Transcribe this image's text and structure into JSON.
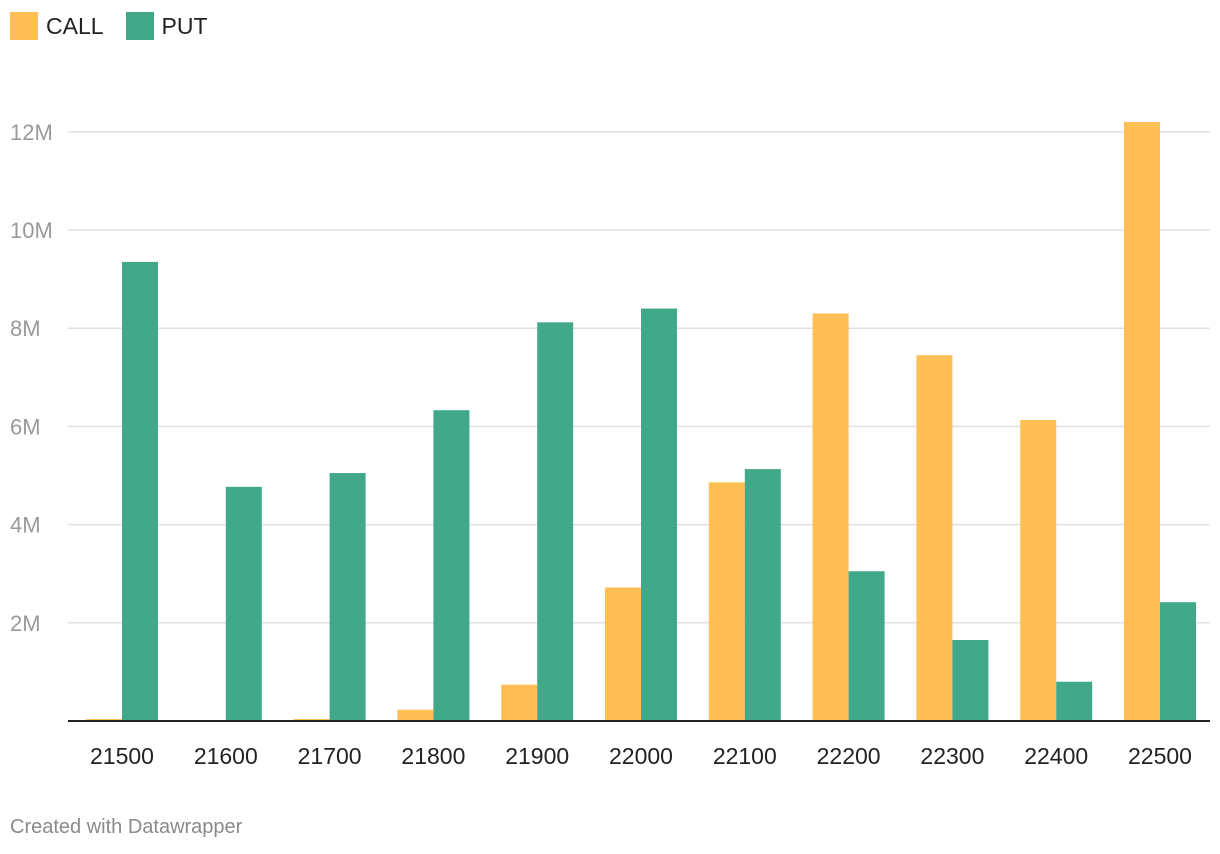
{
  "legend": {
    "items": [
      {
        "label": "CALL",
        "color": "#FFBF55"
      },
      {
        "label": "PUT",
        "color": "#41A98A"
      }
    ]
  },
  "credit": "Created with Datawrapper",
  "chart_data": {
    "type": "bar",
    "title": "",
    "xlabel": "",
    "ylabel": "",
    "categories": [
      "21500",
      "21600",
      "21700",
      "21800",
      "21900",
      "22000",
      "22100",
      "22200",
      "22300",
      "22400",
      "22500"
    ],
    "series": [
      {
        "name": "CALL",
        "color": "#FFBF55",
        "values": [
          40000,
          0,
          40000,
          230000,
          740000,
          2720000,
          4860000,
          8300000,
          7450000,
          6130000,
          12200000
        ]
      },
      {
        "name": "PUT",
        "color": "#41A98A",
        "values": [
          9350000,
          4770000,
          5050000,
          6330000,
          8120000,
          8400000,
          5130000,
          3050000,
          1650000,
          800000,
          2420000
        ]
      }
    ],
    "ylim": [
      0,
      12000000
    ],
    "yticks": [
      2000000,
      4000000,
      6000000,
      8000000,
      10000000,
      12000000
    ],
    "ytick_labels": [
      "2M",
      "4M",
      "6M",
      "8M",
      "10M",
      "12M"
    ],
    "grid": true,
    "legend_position": "top-left"
  }
}
